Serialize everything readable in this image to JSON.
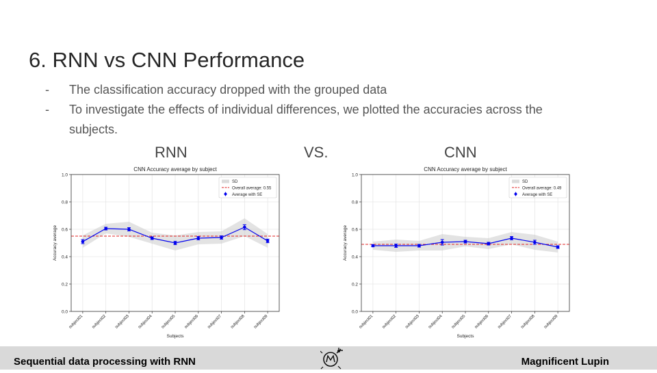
{
  "slide": {
    "title": "6. RNN vs CNN Performance",
    "bullets": [
      {
        "marker": "-",
        "text": "The classification accuracy dropped with the grouped data"
      },
      {
        "marker": "-",
        "text": "To investigate the effects of individual differences, we plotted the accuracies across the subjects."
      }
    ],
    "label_left": "RNN",
    "label_vs": "VS.",
    "label_right": "CNN"
  },
  "footer": {
    "left_text": "Sequential data processing with RNN",
    "right_text": "Magnificent Lupin",
    "logo_icon": "compass-star-logo-icon"
  },
  "chart_data": [
    {
      "type": "line",
      "title": "CNN Accuracy average by subject",
      "xlabel": "Subjects",
      "ylabel": "Accuracy average",
      "categories": [
        "subject01",
        "subject02",
        "subject03",
        "subject04",
        "subject05",
        "subject06",
        "subject07",
        "subject08",
        "subject09"
      ],
      "ylim": [
        0,
        1.0
      ],
      "yticks": [
        "0.0",
        "0.2",
        "0.4",
        "0.6",
        "0.8",
        "1.0"
      ],
      "grid": true,
      "legend_position": "top-right",
      "legend": [
        "SD",
        "Overall average: 0.55",
        "Average with SE"
      ],
      "overall_average": 0.55,
      "series": [
        {
          "values": [
            0.51,
            0.605,
            0.6,
            0.535,
            0.5,
            0.535,
            0.54,
            0.615,
            0.515
          ],
          "se": [
            0.015,
            0.01,
            0.012,
            0.01,
            0.012,
            0.012,
            0.012,
            0.018,
            0.013
          ],
          "sd": [
            0.045,
            0.035,
            0.055,
            0.04,
            0.055,
            0.045,
            0.045,
            0.065,
            0.05
          ]
        }
      ],
      "colors": {
        "line": "#0000ee",
        "average": "#e02020",
        "band": "#cccccc"
      }
    },
    {
      "type": "line",
      "title": "CNN Accuracy average by subject",
      "xlabel": "Subjects",
      "ylabel": "Accuracy average",
      "categories": [
        "subject01",
        "subject02",
        "subject03",
        "subject04",
        "subject05",
        "subject06",
        "subject07",
        "subject08",
        "subject09"
      ],
      "ylim": [
        0,
        1.0
      ],
      "yticks": [
        "0.0",
        "0.2",
        "0.4",
        "0.6",
        "0.8",
        "1.0"
      ],
      "grid": true,
      "legend_position": "top-right",
      "legend": [
        "SD",
        "Overall average: 0.49",
        "Average with SE"
      ],
      "overall_average": 0.49,
      "series": [
        {
          "values": [
            0.48,
            0.48,
            0.48,
            0.505,
            0.51,
            0.495,
            0.535,
            0.505,
            0.47
          ],
          "se": [
            0.008,
            0.012,
            0.01,
            0.02,
            0.01,
            0.01,
            0.012,
            0.015,
            0.01
          ],
          "sd": [
            0.03,
            0.045,
            0.035,
            0.06,
            0.035,
            0.04,
            0.045,
            0.055,
            0.04
          ]
        }
      ],
      "colors": {
        "line": "#0000ee",
        "average": "#e02020",
        "band": "#cccccc"
      }
    }
  ]
}
